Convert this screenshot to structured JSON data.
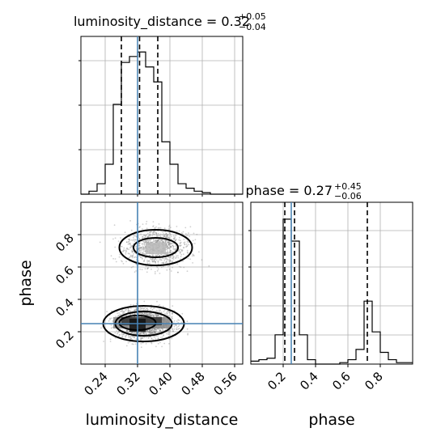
{
  "chart_data": {
    "type": "corner",
    "parameters": [
      "luminosity_distance",
      "phase"
    ],
    "titles": {
      "luminosity_distance": {
        "prefix": "luminosity_distance = 0.32",
        "plus": "+0.05",
        "minus": "−0.04"
      },
      "phase": {
        "prefix": "phase = 0.27",
        "plus": "+0.45",
        "minus": "−0.06"
      }
    },
    "axis_labels": {
      "x_left": "luminosity_distance",
      "x_right": "phase",
      "y_lower": "phase"
    },
    "luminosity_distance": {
      "range": [
        0.18,
        0.58
      ],
      "ticks": [
        0.24,
        0.32,
        0.4,
        0.48,
        0.56
      ],
      "tick_labels": [
        "0.24",
        "0.32",
        "0.40",
        "0.48",
        "0.56"
      ],
      "quantiles": [
        0.28,
        0.325,
        0.37
      ],
      "truth": 0.32,
      "hist_bins": [
        0.18,
        0.2,
        0.22,
        0.24,
        0.26,
        0.28,
        0.3,
        0.32,
        0.34,
        0.36,
        0.38,
        0.4,
        0.42,
        0.44,
        0.46,
        0.48,
        0.5,
        0.52,
        0.54,
        0.56,
        0.58
      ],
      "hist_counts": [
        0,
        2,
        7,
        20,
        60,
        88,
        92,
        95,
        85,
        75,
        35,
        20,
        7,
        4,
        2,
        1,
        0,
        0,
        0,
        0
      ],
      "hist_ymax": 100
    },
    "phase": {
      "range": [
        0.0,
        1.0
      ],
      "ticks": [
        0.2,
        0.4,
        0.6,
        0.8
      ],
      "tick_labels": [
        "0.2",
        "0.4",
        "0.6",
        "0.8"
      ],
      "quantiles": [
        0.21,
        0.27,
        0.72
      ],
      "truth": 0.25,
      "hist_bins": [
        0.0,
        0.05,
        0.1,
        0.15,
        0.2,
        0.25,
        0.3,
        0.35,
        0.4,
        0.45,
        0.5,
        0.55,
        0.6,
        0.65,
        0.7,
        0.75,
        0.8,
        0.85,
        0.9,
        0.95,
        1.0
      ],
      "hist_counts": [
        2,
        3,
        4,
        20,
        99,
        84,
        20,
        3,
        0,
        0,
        0,
        1,
        3,
        10,
        43,
        22,
        8,
        3,
        1,
        1
      ],
      "hist_ymax": 105
    },
    "scatter_2d": {
      "clusters": [
        {
          "center": [
            0.335,
            0.25
          ],
          "spread": [
            0.035,
            0.045
          ],
          "n": 1900
        },
        {
          "center": [
            0.365,
            0.72
          ],
          "spread": [
            0.04,
            0.06
          ],
          "n": 1000
        }
      ],
      "density_blocks": [
        {
          "x": 0.3,
          "y": 0.2,
          "w": 0.04,
          "h": 0.08,
          "shade": "#111111"
        },
        {
          "x": 0.28,
          "y": 0.24,
          "w": 0.1,
          "h": 0.05,
          "shade": "#333333"
        },
        {
          "x": 0.26,
          "y": 0.22,
          "w": 0.14,
          "h": 0.07,
          "shade": "#888888"
        },
        {
          "x": 0.34,
          "y": 0.68,
          "w": 0.05,
          "h": 0.07,
          "shade": "#bbbbbb"
        }
      ],
      "contours": [
        {
          "center": [
            0.335,
            0.25
          ],
          "rx": 0.1,
          "ry": 0.11
        },
        {
          "center": [
            0.335,
            0.25
          ],
          "rx": 0.07,
          "ry": 0.075
        },
        {
          "center": [
            0.32,
            0.255
          ],
          "rx": 0.045,
          "ry": 0.045
        },
        {
          "center": [
            0.365,
            0.72
          ],
          "rx": 0.09,
          "ry": 0.11
        },
        {
          "center": [
            0.365,
            0.72
          ],
          "rx": 0.055,
          "ry": 0.06
        }
      ]
    },
    "colors": {
      "truth": "#4682b4",
      "hist": "#000000",
      "grid": "#b0b0b0"
    },
    "grid": true
  }
}
